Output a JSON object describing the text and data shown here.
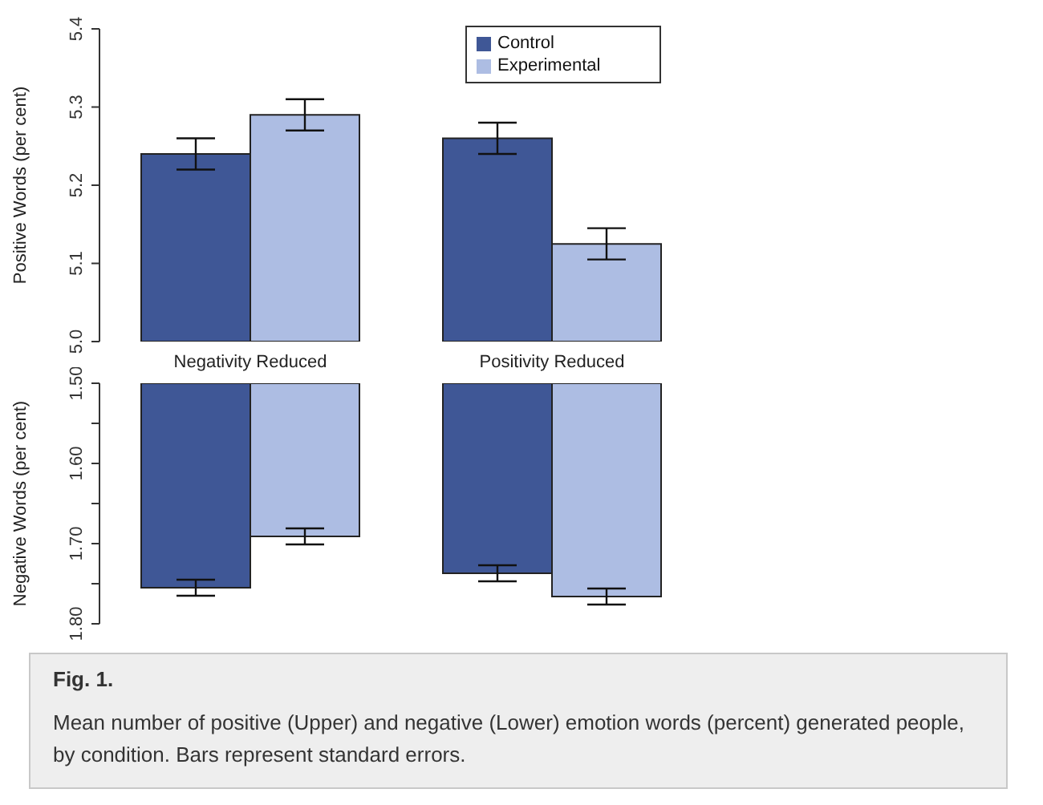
{
  "chart_data": [
    {
      "type": "bar",
      "categories": [
        "Negativity Reduced",
        "Positivity Reduced"
      ],
      "ylabel": "Positive Words (per cent)",
      "series": [
        {
          "name": "Control",
          "color": "#3f5796",
          "values": [
            5.24,
            5.26
          ],
          "errors": [
            0.02,
            0.02
          ]
        },
        {
          "name": "Experimental",
          "color": "#adbde3",
          "values": [
            5.29,
            5.125
          ],
          "errors": [
            0.02,
            0.02
          ]
        }
      ],
      "ylim": [
        5.0,
        5.4
      ],
      "yticks": [
        {
          "value": 5.0,
          "label": "5.0"
        },
        5.1,
        5.2,
        5.3,
        5.4
      ],
      "grid": false,
      "legend": "top right",
      "annotations": [
        "Fig. 1.",
        "Mean number of positive (Upper) and negative (Lower) emotion words (percent) generated people, by condition. Bars represent standard errors."
      ]
    },
    {
      "type": "bar",
      "categories": [
        null,
        null
      ],
      "ylabel": "Negative Words (per cent)",
      "series": [
        {
          "color": "#3f5796",
          "values": [
            1.755,
            1.737
          ],
          "errors": [
            0.01,
            0.01
          ]
        },
        {
          "color": "#adbde3",
          "values": [
            1.691,
            1.766
          ],
          "errors": [
            0.01,
            0.01
          ]
        }
      ],
      "ylim": [
        1.8,
        1.5
      ],
      "yticks": [
        {
          "value": 1.5,
          "label": "1.50"
        },
        {
          "value": 1.55,
          "label": null
        },
        {
          "value": 1.6,
          "label": "1.60"
        },
        {
          "value": 1.65,
          "label": null
        },
        {
          "value": 1.7,
          "label": "1.70"
        },
        {
          "value": 1.75,
          "label": null
        },
        {
          "value": 1.8,
          "label": "1.80"
        }
      ],
      "grid": false,
      "tick_labels": "y"
    }
  ]
}
